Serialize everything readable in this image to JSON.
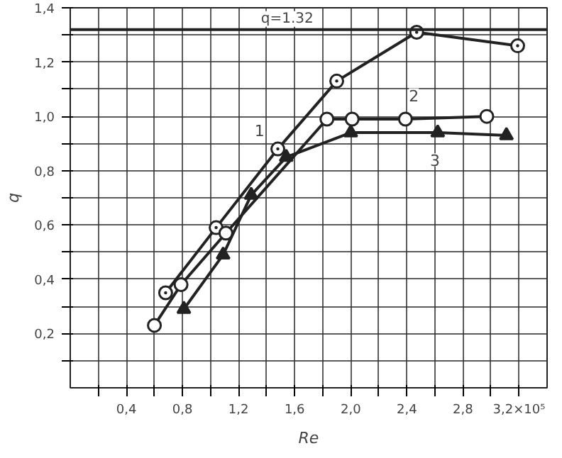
{
  "chart_data": {
    "type": "line",
    "xlabel": "Re",
    "ylabel": "q",
    "xlim": [
      0,
      3.4
    ],
    "ylim": [
      0,
      1.4
    ],
    "xticks": [
      {
        "value": 0.2,
        "label": null
      },
      {
        "value": 0.4,
        "label": "0,4"
      },
      {
        "value": 0.6,
        "label": null
      },
      {
        "value": 0.8,
        "label": "0,8"
      },
      {
        "value": 1.0,
        "label": null
      },
      {
        "value": 1.2,
        "label": "1,2"
      },
      {
        "value": 1.4,
        "label": null
      },
      {
        "value": 1.6,
        "label": "1,6"
      },
      {
        "value": 1.8,
        "label": null
      },
      {
        "value": 2.0,
        "label": "2,0"
      },
      {
        "value": 2.2,
        "label": null
      },
      {
        "value": 2.4,
        "label": "2,4"
      },
      {
        "value": 2.6,
        "label": null
      },
      {
        "value": 2.8,
        "label": "2,8"
      },
      {
        "value": 3.0,
        "label": null
      },
      {
        "value": 3.2,
        "label": "3,2×10⁵"
      }
    ],
    "yticks": [
      {
        "value": 0.1,
        "label": null
      },
      {
        "value": 0.2,
        "label": "0,2"
      },
      {
        "value": 0.3,
        "label": null
      },
      {
        "value": 0.4,
        "label": "0,4"
      },
      {
        "value": 0.5,
        "label": null
      },
      {
        "value": 0.6,
        "label": "0,6"
      },
      {
        "value": 0.7,
        "label": null
      },
      {
        "value": 0.8,
        "label": "0,8"
      },
      {
        "value": 0.9,
        "label": null
      },
      {
        "value": 1.0,
        "label": "1,0"
      },
      {
        "value": 1.1,
        "label": null
      },
      {
        "value": 1.2,
        "label": "1,2"
      },
      {
        "value": 1.3,
        "label": null
      },
      {
        "value": 1.4,
        "label": "1,4"
      }
    ],
    "grid": true,
    "series": [
      {
        "color": "#222222",
        "marker": "circle_dot",
        "x": [
          0.68,
          1.04,
          1.48,
          1.9,
          2.47,
          3.19
        ],
        "values": [
          0.35,
          0.59,
          0.88,
          1.13,
          1.31,
          1.26
        ]
      },
      {
        "color": "#222222",
        "marker": "circle",
        "x": [
          0.6,
          0.79,
          1.11,
          1.83,
          2.01,
          2.39,
          2.97
        ],
        "values": [
          0.23,
          0.38,
          0.57,
          0.99,
          0.99,
          0.99,
          1.0
        ]
      },
      {
        "color": "#222222",
        "marker": "triangle",
        "x": [
          0.81,
          1.09,
          1.29,
          1.54,
          2.0,
          2.62,
          3.11
        ],
        "values": [
          0.29,
          0.49,
          0.71,
          0.85,
          0.94,
          0.94,
          0.93
        ]
      }
    ],
    "ref_lines": [
      {
        "axis": "y",
        "value": 1.32,
        "label": "q=1.32",
        "color": "#222222"
      }
    ],
    "annotations": [
      {
        "text": "1",
        "x": 1.35,
        "y": 0.95
      },
      {
        "text": "2",
        "x": 2.45,
        "y": 1.08
      },
      {
        "text": "3",
        "x": 2.6,
        "y": 0.84
      }
    ]
  }
}
